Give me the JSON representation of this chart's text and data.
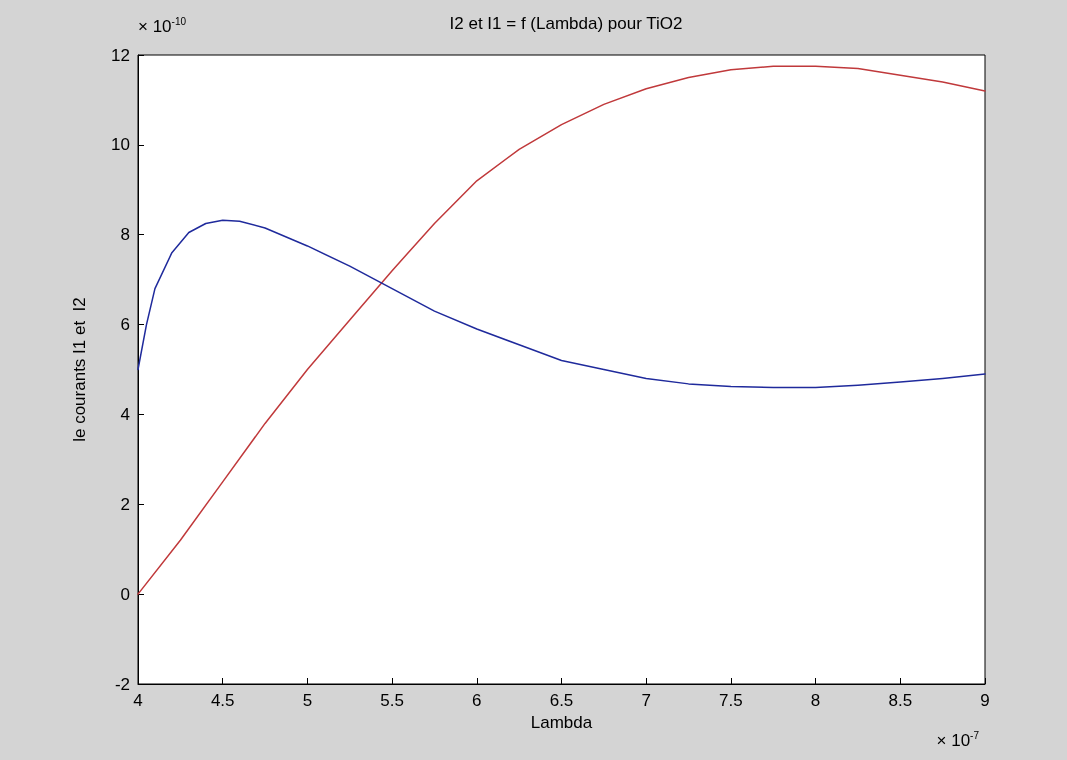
{
  "chart_data": {
    "type": "line",
    "title": "I2 et I1 = f (Lambda) pour TiO2",
    "xlabel": "Lambda",
    "ylabel": "le courants I1 et  I2",
    "annotations": [
      "× 10$^{-10}$",
      "× 10$^{-7}$"
    ],
    "xlim": [
      4,
      9
    ],
    "xticks": [
      4,
      4.5,
      5,
      5.5,
      6,
      6.5,
      7,
      7.5,
      8,
      8.5,
      9
    ],
    "ylim": [
      -2,
      12
    ],
    "yticks": [
      -2,
      0,
      2,
      4,
      6,
      8,
      10,
      12
    ],
    "grid": false,
    "marker": "none",
    "line_style": "solid",
    "series": [
      {
        "color": "#c0393b",
        "x": [
          4,
          4.25,
          4.5,
          4.75,
          5,
          5.25,
          5.5,
          5.75,
          6,
          6.25,
          6.5,
          6.75,
          7,
          7.25,
          7.5,
          7.75,
          8,
          8.25,
          8.5,
          8.75,
          9
        ],
        "values": [
          0,
          1.2,
          2.5,
          3.8,
          5.0,
          6.1,
          7.2,
          8.25,
          9.2,
          9.9,
          10.45,
          10.9,
          11.25,
          11.5,
          11.67,
          11.75,
          11.75,
          11.7,
          11.55,
          11.4,
          11.2
        ]
      },
      {
        "color": "#1f2a9c",
        "x": [
          4,
          4.05,
          4.1,
          4.2,
          4.3,
          4.4,
          4.5,
          4.6,
          4.75,
          5,
          5.25,
          5.5,
          5.75,
          6,
          6.25,
          6.5,
          6.75,
          7,
          7.25,
          7.5,
          7.75,
          8,
          8.25,
          8.5,
          8.75,
          9
        ],
        "values": [
          5.0,
          6.0,
          6.8,
          7.6,
          8.05,
          8.25,
          8.32,
          8.3,
          8.15,
          7.75,
          7.3,
          6.8,
          6.3,
          5.9,
          5.55,
          5.2,
          5.0,
          4.8,
          4.68,
          4.62,
          4.6,
          4.6,
          4.65,
          4.72,
          4.8,
          4.9
        ]
      }
    ]
  }
}
